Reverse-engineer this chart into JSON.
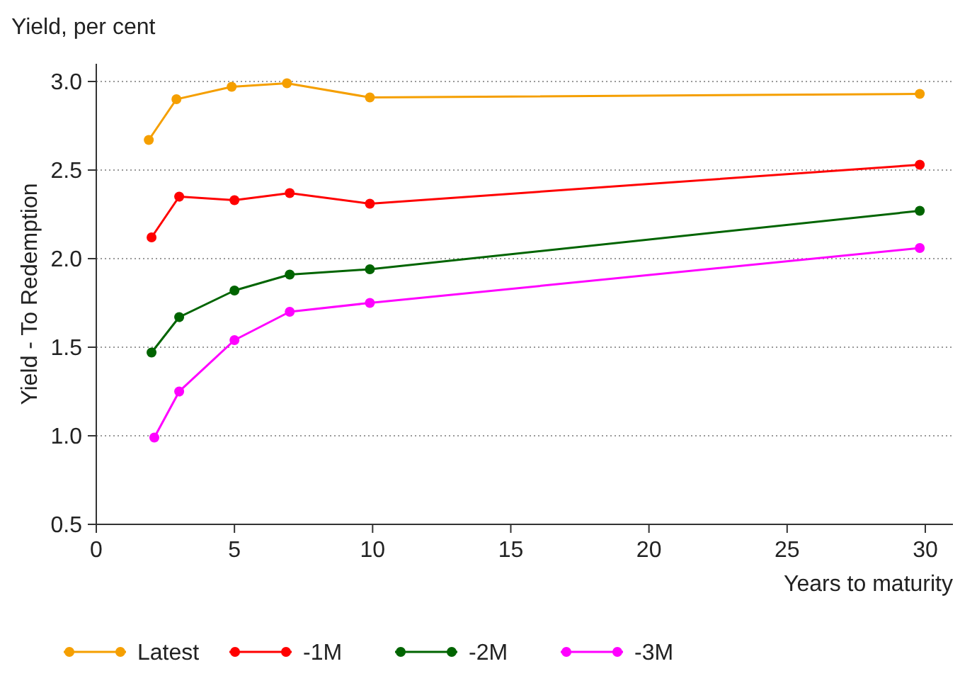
{
  "chart_data": {
    "type": "line",
    "title": "Yield, per cent",
    "xlabel": "Years to maturity",
    "ylabel": "Yield - To Redemption",
    "xlim": [
      0,
      31
    ],
    "xticks": [
      0,
      5,
      10,
      15,
      20,
      25,
      30
    ],
    "ylim": [
      0.5,
      3.1
    ],
    "yticks": [
      0.5,
      {
        "value": 1,
        "label": "1.0"
      },
      1.5,
      {
        "value": 2,
        "label": "2.0"
      },
      2.5,
      {
        "value": 3,
        "label": "3.0"
      }
    ],
    "grid": "y",
    "legend": "bottom",
    "marker": "circle",
    "line_style": "solid",
    "series": [
      {
        "name": "Latest",
        "color": "#f59f00",
        "x": [
          1.9,
          2.9,
          4.9,
          6.9,
          9.9,
          29.8
        ],
        "values": [
          2.67,
          2.9,
          2.97,
          2.99,
          2.91,
          2.93
        ]
      },
      {
        "name": "-1M",
        "color": "#ff0000",
        "x": [
          2.0,
          3.0,
          5.0,
          7.0,
          9.9,
          29.8
        ],
        "values": [
          2.12,
          2.35,
          2.33,
          2.37,
          2.31,
          2.53
        ]
      },
      {
        "name": "-2M",
        "color": "#006400",
        "x": [
          2.0,
          3.0,
          5.0,
          7.0,
          9.9,
          29.8
        ],
        "values": [
          1.47,
          1.67,
          1.82,
          1.91,
          1.94,
          2.27
        ]
      },
      {
        "name": "-3M",
        "color": "#ff00ff",
        "x": [
          2.1,
          3.0,
          5.0,
          7.0,
          9.9,
          29.8
        ],
        "values": [
          0.99,
          1.25,
          1.54,
          1.7,
          1.75,
          2.06
        ]
      }
    ]
  }
}
